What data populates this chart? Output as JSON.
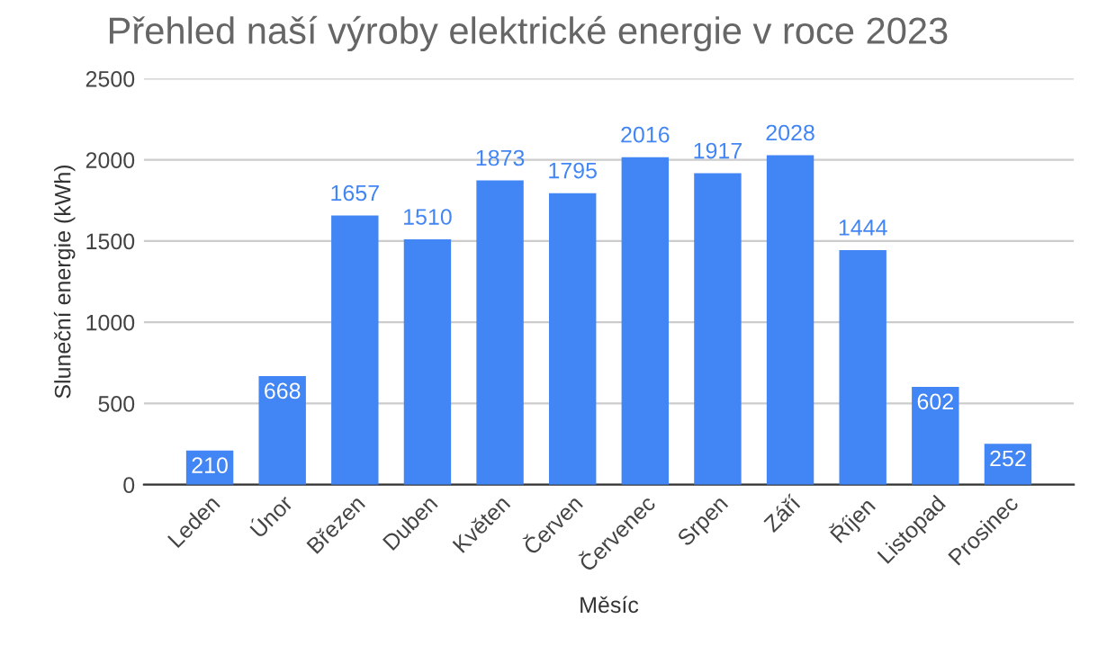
{
  "chart_data": {
    "type": "bar",
    "title": "Přehled naší výroby elektrické energie v roce 2023",
    "xlabel": "Měsíc",
    "ylabel": "Sluneční energie (kWh)",
    "categories": [
      "Leden",
      "Únor",
      "Březen",
      "Duben",
      "Květen",
      "Červen",
      "Červenec",
      "Srpen",
      "Září",
      "Říjen",
      "Listopad",
      "Prosinec"
    ],
    "values": [
      210,
      668,
      1657,
      1510,
      1873,
      1795,
      2016,
      1917,
      2028,
      1444,
      602,
      252
    ],
    "color": "#4285f4",
    "ylim": [
      0,
      2500
    ],
    "yticks": [
      0,
      500,
      1000,
      1500,
      2000,
      2500
    ],
    "grid": "y",
    "data_labels": true,
    "legend": false
  }
}
